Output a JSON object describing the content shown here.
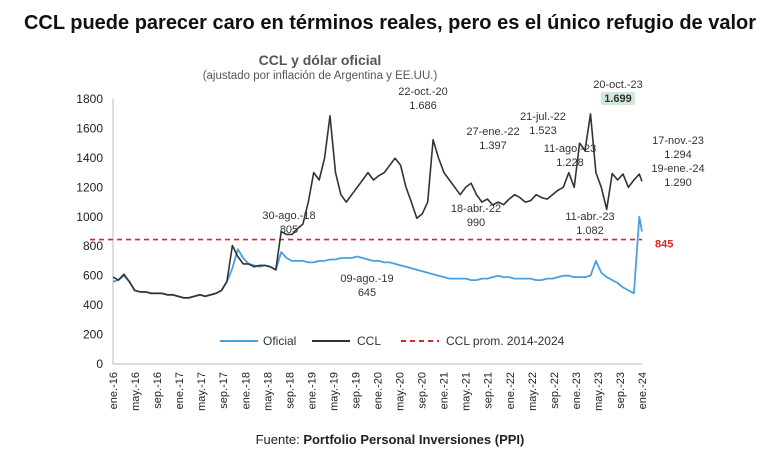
{
  "headline": "CCL puede parecer caro en términos reales, pero es el único refugio de valor",
  "source": {
    "prefix": "Fuente: ",
    "name": "Portfolio Personal Inversiones (PPI)"
  },
  "chart_data": {
    "type": "line",
    "title": "CCL y dólar oficial",
    "subtitle": "(ajustado por inflación de Argentina y EE.UU.)",
    "xlabel": "",
    "ylabel": "",
    "ylim": [
      0,
      1800
    ],
    "yticks": [
      0,
      200,
      400,
      600,
      800,
      1000,
      1200,
      1400,
      1600,
      1800
    ],
    "xticks": [
      "ene.-16",
      "may.-16",
      "sep.-16",
      "ene.-17",
      "may.-17",
      "sep.-17",
      "ene.-18",
      "may.-18",
      "sep.-18",
      "ene.-19",
      "may.-19",
      "sep.-19",
      "ene.-20",
      "may.-20",
      "sep.-20",
      "ene.-21",
      "may.-21",
      "sep.-21",
      "ene.-22",
      "may.-22",
      "sep.-22",
      "ene.-23",
      "may.-23",
      "sep.-23",
      "ene.-24"
    ],
    "grid": false,
    "legend_position": "bottom",
    "colors": {
      "oficial": "#4a9fe0",
      "ccl": "#333333",
      "mean": "#d62828",
      "highlight_bg": "#cfe8d8"
    },
    "series": [
      {
        "name": "Oficial",
        "x": [
          0,
          1,
          2,
          3,
          4,
          5,
          6,
          7,
          8,
          9,
          10,
          11,
          12,
          13,
          14,
          15,
          16,
          17,
          18,
          19,
          20,
          21,
          22,
          23,
          24,
          25,
          26,
          27,
          28,
          29,
          30,
          31,
          32,
          33,
          34,
          35,
          36,
          37,
          38,
          39,
          40,
          41,
          42,
          43,
          44,
          45,
          46,
          47,
          48,
          49,
          50,
          51,
          52,
          53,
          54,
          55,
          56,
          57,
          58,
          59,
          60,
          61,
          62,
          63,
          64,
          65,
          66,
          67,
          68,
          69,
          70,
          71,
          72,
          73,
          74,
          75,
          76,
          77,
          78,
          79,
          80,
          81,
          82,
          83,
          84,
          85,
          86,
          87,
          88,
          89,
          90,
          91,
          92,
          93,
          94,
          95,
          96,
          97,
          97.5
        ],
        "values": [
          560,
          570,
          600,
          560,
          500,
          490,
          490,
          480,
          480,
          480,
          470,
          470,
          460,
          450,
          450,
          460,
          470,
          460,
          470,
          480,
          500,
          560,
          650,
          780,
          720,
          680,
          670,
          660,
          670,
          660,
          640,
          760,
          720,
          700,
          700,
          700,
          690,
          690,
          700,
          700,
          710,
          710,
          720,
          720,
          720,
          730,
          720,
          710,
          700,
          700,
          690,
          690,
          680,
          670,
          660,
          650,
          640,
          630,
          620,
          610,
          600,
          590,
          580,
          580,
          580,
          580,
          570,
          570,
          580,
          580,
          590,
          600,
          590,
          590,
          580,
          580,
          580,
          580,
          570,
          570,
          580,
          580,
          590,
          600,
          600,
          590,
          590,
          590,
          600,
          700,
          620,
          590,
          570,
          550,
          520,
          500,
          480,
          1000,
          900
        ]
      },
      {
        "name": "CCL",
        "x": [
          0,
          1,
          2,
          3,
          4,
          5,
          6,
          7,
          8,
          9,
          10,
          11,
          12,
          13,
          14,
          15,
          16,
          17,
          18,
          19,
          20,
          21,
          22,
          23,
          24,
          25,
          26,
          27,
          28,
          29,
          30,
          31,
          32,
          33,
          34,
          35,
          36,
          37,
          38,
          39,
          40,
          41,
          42,
          43,
          44,
          45,
          46,
          47,
          48,
          49,
          50,
          51,
          52,
          53,
          54,
          55,
          56,
          57,
          58,
          59,
          60,
          61,
          62,
          63,
          64,
          65,
          66,
          67,
          68,
          69,
          70,
          71,
          72,
          73,
          74,
          75,
          76,
          77,
          78,
          79,
          80,
          81,
          82,
          83,
          84,
          85,
          86,
          87,
          88,
          89,
          90,
          91,
          92,
          93,
          94,
          95,
          96,
          97,
          97.5
        ],
        "values": [
          590,
          570,
          610,
          560,
          500,
          490,
          490,
          480,
          480,
          480,
          470,
          470,
          460,
          450,
          450,
          460,
          470,
          460,
          470,
          480,
          500,
          560,
          805,
          730,
          680,
          680,
          660,
          670,
          670,
          660,
          640,
          900,
          880,
          880,
          920,
          950,
          1100,
          1300,
          1250,
          1400,
          1686,
          1300,
          1150,
          1100,
          1150,
          1200,
          1250,
          1300,
          1250,
          1280,
          1300,
          1350,
          1397,
          1350,
          1200,
          1100,
          990,
          1020,
          1100,
          1523,
          1400,
          1300,
          1250,
          1200,
          1150,
          1200,
          1228,
          1150,
          1100,
          1120,
          1080,
          1100,
          1082,
          1120,
          1150,
          1130,
          1100,
          1110,
          1150,
          1130,
          1120,
          1150,
          1180,
          1200,
          1300,
          1200,
          1500,
          1450,
          1699,
          1300,
          1200,
          1050,
          1294,
          1250,
          1290,
          1200,
          1250,
          1290,
          1240
        ]
      },
      {
        "name": "CCL prom. 2014-2024",
        "values": [
          845
        ]
      }
    ],
    "annotations": [
      {
        "date": "30-ago.-18",
        "value": "805"
      },
      {
        "date": "09-ago.-19",
        "value": "645"
      },
      {
        "date": "22-oct.-20",
        "value": "1.686"
      },
      {
        "date": "27-ene.-22",
        "value": "1.397"
      },
      {
        "date": "18-abr.-22",
        "value": "990"
      },
      {
        "date": "21-jul.-22",
        "value": "1.523"
      },
      {
        "date": "11-ago.-23",
        "value": "1.228"
      },
      {
        "date": "11-abr.-23",
        "value": "1.082"
      },
      {
        "date": "20-oct.-23",
        "value": "1.699"
      },
      {
        "date": "17-nov.-23",
        "value": "1.294"
      },
      {
        "date": "19-ene.-24",
        "value": "1.290"
      }
    ],
    "mean_label": "845"
  }
}
